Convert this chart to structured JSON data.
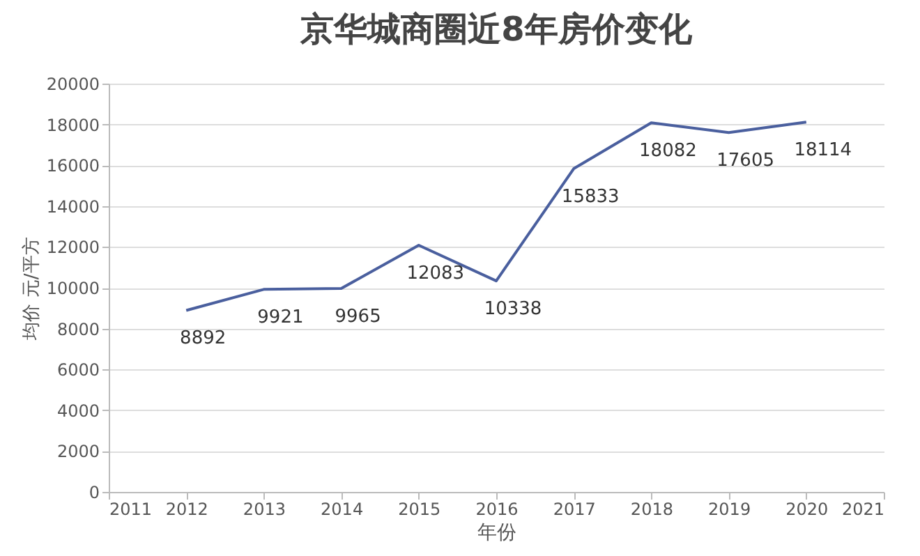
{
  "chart_data": {
    "type": "line",
    "title": "京华城商圈近8年房价变化",
    "xlabel": "年份",
    "ylabel": "均价 元/平方",
    "x": [
      2012,
      2013,
      2014,
      2015,
      2016,
      2017,
      2018,
      2019,
      2020
    ],
    "series": [
      {
        "color": "#4a5f9e",
        "values": [
          8892,
          9921,
          9965,
          12083,
          10338,
          15833,
          18082,
          17605,
          18114
        ]
      }
    ],
    "xlim": [
      2011,
      2021
    ],
    "xticks": [
      2011,
      2012,
      2013,
      2014,
      2015,
      2016,
      2017,
      2018,
      2019,
      2020,
      2021
    ],
    "ylim": [
      0,
      20000
    ],
    "yticks": [
      0,
      2000,
      4000,
      6000,
      8000,
      10000,
      12000,
      14000,
      16000,
      18000,
      20000
    ],
    "grid": "y",
    "data_labels": true,
    "marker": "none",
    "line_style": "solid"
  }
}
